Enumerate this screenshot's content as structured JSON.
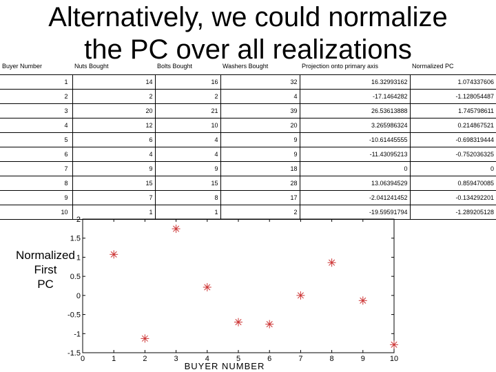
{
  "title_line1": "Alternatively, we could normalize",
  "title_line2": "the PC over all realizations",
  "table": {
    "headers": [
      "Buyer Number",
      "Nuts Bought",
      "Bolts Bought",
      "Washers Bought",
      "Projection onto primary axis",
      "Normalized PC"
    ],
    "rows": [
      [
        "1",
        "14",
        "16",
        "32",
        "16.32993162",
        "1.074337606"
      ],
      [
        "2",
        "2",
        "2",
        "4",
        "-17.1464282",
        "-1.128054487"
      ],
      [
        "3",
        "20",
        "21",
        "39",
        "26.53613888",
        "1.745798611"
      ],
      [
        "4",
        "12",
        "10",
        "20",
        "3.265986324",
        "0.214867521"
      ],
      [
        "5",
        "6",
        "4",
        "9",
        "-10.61445555",
        "-0.698319444"
      ],
      [
        "6",
        "4",
        "4",
        "9",
        "-11.43095213",
        "-0.752036325"
      ],
      [
        "7",
        "9",
        "9",
        "18",
        "0",
        "0"
      ],
      [
        "8",
        "15",
        "15",
        "28",
        "13.06394529",
        "0.859470085"
      ],
      [
        "9",
        "7",
        "8",
        "17",
        "-2.041241452",
        "-0.134292201"
      ],
      [
        "10",
        "1",
        "1",
        "2",
        "-19.59591794",
        "-1.289205128"
      ]
    ]
  },
  "side_label": [
    "Normalized",
    "First",
    "PC"
  ],
  "chart_data": {
    "type": "scatter",
    "x": [
      1,
      2,
      3,
      4,
      5,
      6,
      7,
      8,
      9,
      10
    ],
    "y": [
      1.074337606,
      -1.128054487,
      1.745798611,
      0.214867521,
      -0.698319444,
      -0.752036325,
      0,
      0.859470085,
      -0.134292201,
      -1.289205128
    ],
    "xlabel": "BUYER NUMBER",
    "ylabel": "",
    "xlim": [
      0,
      10
    ],
    "ylim": [
      -1.5,
      2
    ],
    "xticks": [
      "0",
      "1",
      "2",
      "3",
      "4",
      "5",
      "6",
      "7",
      "8",
      "9",
      "10"
    ],
    "yticks": [
      "-1.5",
      "-1",
      "-0.5",
      "0",
      "0.5",
      "1",
      "1.5",
      "2"
    ],
    "yticks_values": [
      -1.5,
      -1,
      -0.5,
      0,
      0.5,
      1,
      1.5,
      2
    ],
    "xticks_values": [
      0,
      1,
      2,
      3,
      4,
      5,
      6,
      7,
      8,
      9,
      10
    ],
    "marker": "asterisk",
    "marker_color": "#cc3333",
    "grid": false
  }
}
